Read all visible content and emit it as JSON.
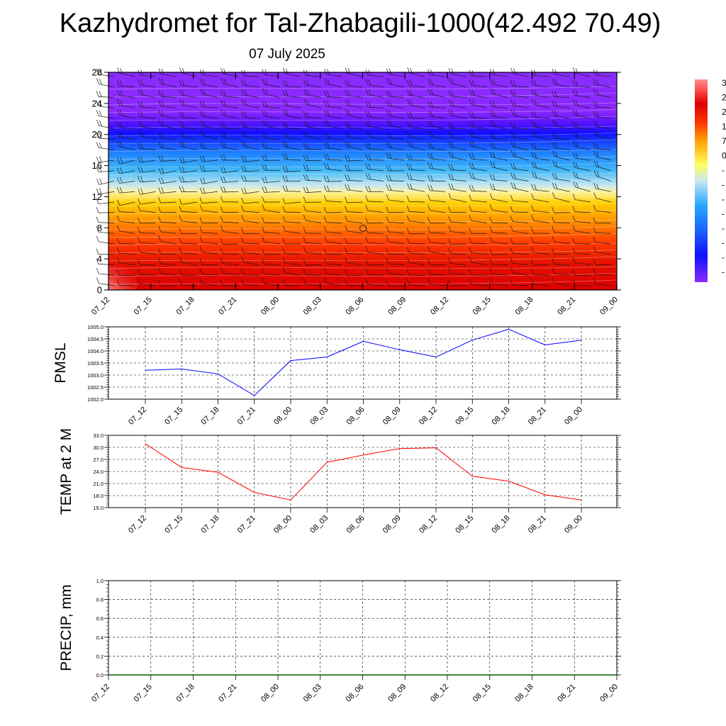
{
  "page": {
    "title": "Kazhydromet for Tal-Zhabagili-1000(42.492 70.49)",
    "subtitle": "07 July 2025"
  },
  "colors": {
    "pmsl_line": "#0000ff",
    "temp_line": "#ff0000",
    "precip_line": "#006400",
    "colormap": [
      "#c8c8c8",
      "#a000ff",
      "#7a1cff",
      "#1010ff",
      "#1a72ff",
      "#26a8ff",
      "#5fd0f0",
      "#c8e8f0",
      "#ffff80",
      "#ffd200",
      "#ff9a00",
      "#ff5a00",
      "#ee1000",
      "#dd0000",
      "#c40000",
      "#ff9090"
    ]
  },
  "chart_data": [
    {
      "type": "heatmap",
      "name": "height-time cross-section",
      "x_categories": [
        "07_12",
        "07_15",
        "07_18",
        "07_21",
        "08_00",
        "08_03",
        "08_06",
        "08_09",
        "08_12",
        "08_15",
        "08_18",
        "08_21",
        "09_00"
      ],
      "y_ticks": [
        0,
        4,
        8,
        12,
        16,
        20,
        24,
        28
      ],
      "ylim": [
        0,
        28
      ],
      "colorbar_labels": [
        "3",
        "2",
        "2",
        "1",
        "7",
        "0",
        "-",
        "-",
        "-",
        "-",
        "-",
        "-",
        "-",
        "-"
      ],
      "overlay": "wind barbs",
      "grid": false
    },
    {
      "type": "line",
      "ylabel": "PMSL",
      "x": [
        "07_12",
        "07_15",
        "07_18",
        "07_21",
        "08_00",
        "08_03",
        "08_06",
        "08_09",
        "08_12",
        "08_15",
        "08_18",
        "08_21",
        "09_00"
      ],
      "y": [
        1003.2,
        1003.25,
        1003.05,
        1002.15,
        1003.6,
        1003.75,
        1004.4,
        1004.05,
        1003.75,
        1004.45,
        1004.9,
        1004.25,
        1004.45
      ],
      "ylim": [
        1002.0,
        1005.0
      ],
      "y_ticks": [
        "1002.0",
        "1002.5",
        "1003.0",
        "1003.5",
        "1004.0",
        "1004.5",
        "1005.0"
      ],
      "grid": true
    },
    {
      "type": "line",
      "ylabel": "TEMP at 2 M",
      "x": [
        "07_12",
        "07_15",
        "07_18",
        "07_21",
        "08_00",
        "08_03",
        "08_06",
        "08_09",
        "08_12",
        "08_15",
        "08_18",
        "08_21",
        "09_00"
      ],
      "y": [
        30.9,
        25.0,
        23.8,
        18.8,
        16.9,
        26.3,
        28.1,
        29.7,
        29.9,
        22.8,
        21.6,
        18.2,
        16.9
      ],
      "ylim": [
        15.0,
        33.0
      ],
      "y_ticks": [
        "15.0",
        "18.0",
        "21.0",
        "24.0",
        "27.0",
        "30.0",
        "33.0"
      ],
      "grid": true
    },
    {
      "type": "line",
      "ylabel": "PRECIP, mm",
      "x_categories": [
        "07_12",
        "07_15",
        "07_18",
        "07_21",
        "08_00",
        "08_03",
        "08_06",
        "08_09",
        "08_12",
        "08_15",
        "08_18",
        "08_21",
        "09_00"
      ],
      "y": [
        0,
        0,
        0,
        0,
        0,
        0,
        0,
        0,
        0,
        0,
        0,
        0,
        0
      ],
      "ylim": [
        0.0,
        1.0
      ],
      "y_ticks": [
        "0.0",
        "0.2",
        "0.4",
        "0.6",
        "0.8",
        "1.0"
      ],
      "grid": true
    }
  ]
}
